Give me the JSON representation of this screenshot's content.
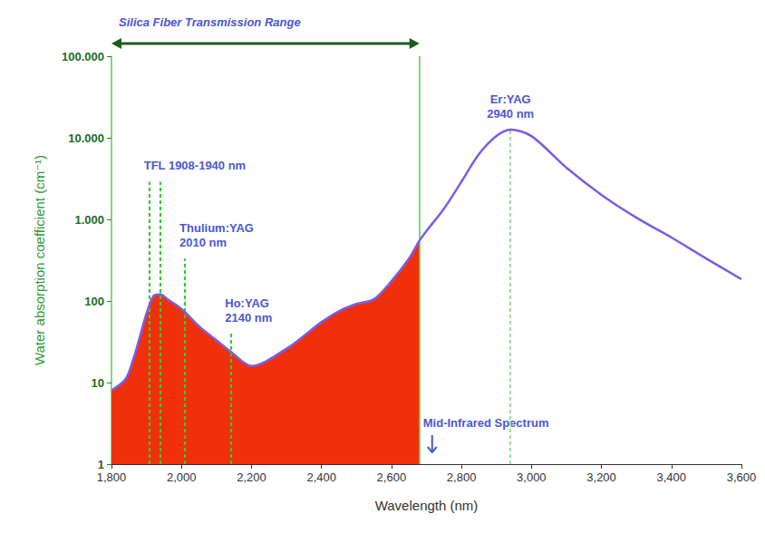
{
  "chart_data": {
    "type": "line",
    "xlabel": "Wavelength (nm)",
    "ylabel": "Water absorption coefficient (cm⁻¹)",
    "x": [
      1800,
      1840,
      1860,
      1880,
      1900,
      1920,
      1940,
      1960,
      2000,
      2050,
      2100,
      2140,
      2200,
      2300,
      2400,
      2450,
      2500,
      2550,
      2600,
      2650,
      2680,
      2700,
      2750,
      2800,
      2850,
      2900,
      2940,
      3000,
      3100,
      3200,
      3300,
      3400,
      3500,
      3600
    ],
    "values": [
      8,
      11,
      18,
      35,
      70,
      115,
      120,
      105,
      80,
      49,
      33,
      24,
      16,
      26,
      55,
      75,
      92,
      105,
      175,
      330,
      550,
      720,
      1350,
      2900,
      6300,
      10500,
      12600,
      10500,
      4300,
      2000,
      1050,
      600,
      330,
      185
    ],
    "color": "#7b5ce8",
    "xlim": [
      1800,
      3600
    ],
    "xticks": [
      {
        "value": 1800,
        "label": "1,800"
      },
      {
        "value": 2000,
        "label": "2,000"
      },
      {
        "value": 2200,
        "label": "2,200"
      },
      {
        "value": 2400,
        "label": "2,400"
      },
      {
        "value": 2600,
        "label": "2,600"
      },
      {
        "value": 2800,
        "label": "2,800"
      },
      {
        "value": 3000,
        "label": "3,000"
      },
      {
        "value": 3200,
        "label": "3,200"
      },
      {
        "value": 3400,
        "label": "3,400"
      },
      {
        "value": 3600,
        "label": "3,600"
      }
    ],
    "ylim": [
      1,
      100000
    ],
    "yticks": [
      1,
      10,
      100,
      {
        "value": 1000,
        "label": "1.000"
      },
      {
        "value": 10000,
        "label": "10.000"
      },
      {
        "value": 100000,
        "label": "100.000"
      }
    ],
    "log": "y",
    "grid": false,
    "silica_fiber_range": {
      "label": "Silica Fiber Transmission Range",
      "range": [
        1800,
        2680
      ]
    },
    "mid_infrared_label": "Mid-Infrared Spectrum",
    "lasers": [
      {
        "label": [
          "TFL 1908-1940 nm"
        ],
        "x": [
          1908,
          1940
        ],
        "y_top": 2900,
        "color": "#33cc33"
      },
      {
        "label": [
          "Thulium:YAG",
          "2010 nm"
        ],
        "x": [
          2010
        ],
        "y_top": 330,
        "color": "#33cc33"
      },
      {
        "label": [
          "Ho:YAG",
          "2140 nm"
        ],
        "x": [
          2140
        ],
        "y_top": 40,
        "color": "#33cc33"
      },
      {
        "label": [
          "Er:YAG",
          "2940 nm"
        ],
        "x": [
          2940
        ],
        "y_top": 12600,
        "color": "#a6dca6"
      }
    ]
  }
}
